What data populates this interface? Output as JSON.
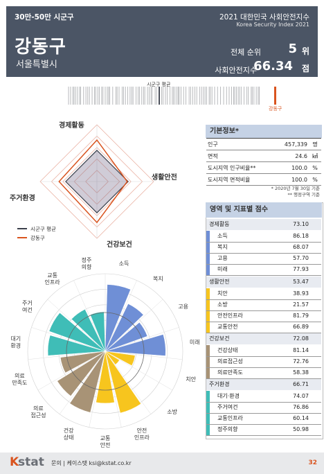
{
  "header": {
    "category": "30만-50만 시군구",
    "name": "강동구",
    "region": "서울특별시",
    "index_title": "2021 대한민국 사회안전지수",
    "index_title_en": "Korea Security Index 2021",
    "overall_rank_label": "전체 순위",
    "overall_rank": "5",
    "rank_unit": "위",
    "score_label": "사회안전지수",
    "score": "66.34",
    "score_unit": "점"
  },
  "rug": {
    "avg_label": "시군구 평균",
    "self_label": "강동구"
  },
  "radar": {
    "axes": [
      "경제활동",
      "생활안전",
      "건강보건",
      "주거환경"
    ],
    "series": [
      {
        "name": "시군구 평균",
        "color": "#3a3f4b",
        "values": [
          55,
          55,
          55,
          55
        ]
      },
      {
        "name": "강동구",
        "color": "#d9531e",
        "values": [
          73.1,
          53.47,
          72.08,
          66.71
        ]
      }
    ]
  },
  "polar": {
    "labels": [
      "소득",
      "복지",
      "고용",
      "미래",
      "치안",
      "소방",
      "안전\n인프라",
      "교통\n안전",
      "건강\n상태",
      "의료\n접근성",
      "의료\n만족도",
      "대기\n환경",
      "주거\n여건",
      "교통\n인프라",
      "정주\n의향"
    ],
    "values": [
      86.18,
      68.07,
      57.7,
      77.93,
      38.93,
      21.57,
      81.79,
      66.89,
      81.14,
      72.76,
      58.38,
      74.07,
      76.86,
      60.14,
      50.98
    ],
    "colors": [
      "#6f8fd6",
      "#6f8fd6",
      "#6f8fd6",
      "#6f8fd6",
      "#f7c51e",
      "#f7c51e",
      "#f7c51e",
      "#f7c51e",
      "#a89376",
      "#a89376",
      "#a89376",
      "#3fbdb7",
      "#3fbdb7",
      "#3fbdb7",
      "#3fbdb7"
    ],
    "average": 50
  },
  "basic_info": {
    "title": "기본정보*",
    "rows": [
      {
        "label": "인구",
        "value": "457,339",
        "unit": "명"
      },
      {
        "label": "면적",
        "value": "24.6",
        "unit": "㎢"
      },
      {
        "label": "도시지역 인구비율**",
        "value": "100.0",
        "unit": "%"
      },
      {
        "label": "도시지역 면적비율",
        "value": "100.0",
        "unit": "%"
      }
    ],
    "note1": "* 2020년 7월 30일 기준",
    "note2": "** 행정구역 기준"
  },
  "scores": {
    "title": "영역 및 지표별 점수",
    "domains": [
      {
        "name": "경제활동",
        "score": "73.10",
        "color": "#6f8fd6",
        "items": [
          {
            "name": "소득",
            "score": "86.18"
          },
          {
            "name": "복지",
            "score": "68.07"
          },
          {
            "name": "고용",
            "score": "57.70"
          },
          {
            "name": "미래",
            "score": "77.93"
          }
        ]
      },
      {
        "name": "생활안전",
        "score": "53.47",
        "color": "#f7c51e",
        "items": [
          {
            "name": "치안",
            "score": "38.93"
          },
          {
            "name": "소방",
            "score": "21.57"
          },
          {
            "name": "안전인프라",
            "score": "81.79"
          },
          {
            "name": "교통안전",
            "score": "66.89"
          }
        ]
      },
      {
        "name": "건강보건",
        "score": "72.08",
        "color": "#a89376",
        "items": [
          {
            "name": "건강상태",
            "score": "81.14"
          },
          {
            "name": "의료접근성",
            "score": "72.76"
          },
          {
            "name": "의료만족도",
            "score": "58.38"
          }
        ]
      },
      {
        "name": "주거환경",
        "score": "66.71",
        "color": "#3fbdb7",
        "items": [
          {
            "name": "대기·환경",
            "score": "74.07"
          },
          {
            "name": "주거여건",
            "score": "76.86"
          },
          {
            "name": "교통인프라",
            "score": "60.14"
          },
          {
            "name": "정주의향",
            "score": "50.98"
          }
        ]
      }
    ]
  },
  "footer": {
    "logo_k": "K",
    "logo_stat": "stat",
    "contact": "문의 | 케이스탯 ksi@kstat.co.kr",
    "page": "32"
  }
}
